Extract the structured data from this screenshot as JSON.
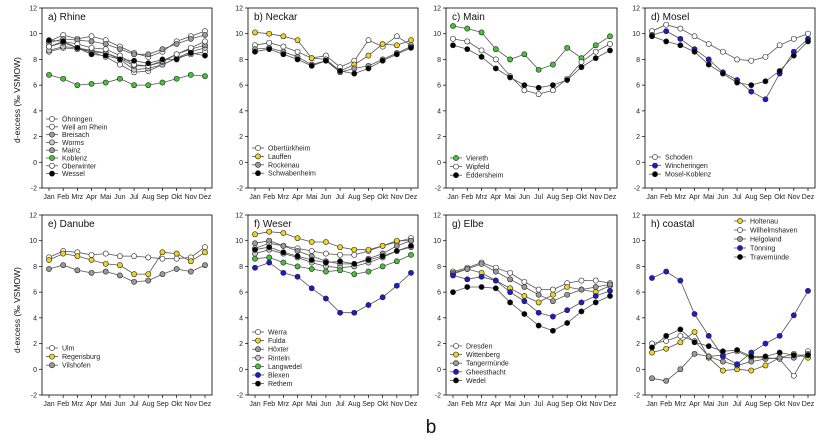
{
  "figure_label": "b",
  "y_axis_label": "d-excess (‰ VSMOW)",
  "colors": {
    "white": "#ffffff",
    "yellow": "#f2d21c",
    "grey": "#9a9a9a",
    "light_grey": "#c8c8c8",
    "green": "#45c236",
    "blue": "#1b1bd0",
    "black": "#000000"
  },
  "chart_data": [
    {
      "type": "line",
      "title": "a) Rhine",
      "categories": [
        "Jan",
        "Feb",
        "Mrz",
        "Apr",
        "Mai",
        "Jun",
        "Jul",
        "Aug",
        "Sep",
        "Okt",
        "Nov",
        "Dez"
      ],
      "ylim": [
        -2,
        12
      ],
      "yticks": [
        -2,
        0,
        2,
        4,
        6,
        8,
        10,
        12
      ],
      "series": [
        {
          "name": "Öhningen",
          "fill": "white",
          "values": [
            8.6,
            8.9,
            8.8,
            8.6,
            8.2,
            7.6,
            7.0,
            7.1,
            7.6,
            8.1,
            8.4,
            8.6
          ]
        },
        {
          "name": "Weil am Rhein",
          "fill": "white",
          "values": [
            9.4,
            9.9,
            9.6,
            9.8,
            9.5,
            9.0,
            8.5,
            8.2,
            8.6,
            9.4,
            9.8,
            10.2
          ]
        },
        {
          "name": "Breisach",
          "fill": "grey",
          "values": [
            9.3,
            9.6,
            9.5,
            9.4,
            9.2,
            8.8,
            8.4,
            8.4,
            8.8,
            9.2,
            9.6,
            9.9
          ]
        },
        {
          "name": "Worms",
          "fill": "light_grey",
          "values": [
            8.7,
            9.0,
            8.9,
            8.7,
            8.5,
            8.0,
            7.2,
            7.3,
            7.6,
            8.1,
            8.6,
            8.9
          ]
        },
        {
          "name": "Mainz",
          "fill": "grey",
          "values": [
            9.0,
            9.3,
            8.9,
            8.6,
            8.5,
            8.1,
            7.5,
            7.5,
            7.8,
            8.4,
            8.8,
            9.1
          ]
        },
        {
          "name": "Koblenz",
          "fill": "green",
          "values": [
            6.8,
            6.5,
            6.0,
            6.1,
            6.2,
            6.5,
            6.0,
            6.0,
            6.2,
            6.5,
            6.8,
            6.7
          ]
        },
        {
          "name": "Oberwinter",
          "fill": "white",
          "values": [
            9.0,
            9.4,
            9.2,
            8.9,
            8.8,
            8.3,
            7.6,
            7.5,
            7.9,
            8.4,
            8.9,
            9.4
          ]
        },
        {
          "name": "Wessel",
          "fill": "black",
          "values": [
            9.5,
            9.4,
            8.9,
            8.4,
            8.3,
            8.0,
            7.9,
            7.7,
            8.0,
            8.0,
            8.5,
            8.3
          ]
        }
      ]
    },
    {
      "type": "line",
      "title": "b) Neckar",
      "categories": [
        "Jan",
        "Feb",
        "Mrz",
        "Apr",
        "Mai",
        "Jun",
        "Jul",
        "Aug",
        "Sep",
        "Okt",
        "Nov",
        "Dez"
      ],
      "ylim": [
        -2,
        12
      ],
      "yticks": [
        -2,
        0,
        2,
        4,
        6,
        8,
        10,
        12
      ],
      "series": [
        {
          "name": "Obertürkheim",
          "fill": "white",
          "values": [
            9.1,
            9.3,
            9.0,
            8.6,
            8.1,
            8.3,
            7.4,
            7.9,
            9.5,
            9.0,
            9.8,
            9.1
          ]
        },
        {
          "name": "Lauffen",
          "fill": "yellow",
          "values": [
            10.1,
            10.0,
            9.8,
            9.5,
            8.1,
            8.0,
            7.1,
            7.6,
            8.3,
            9.2,
            9.1,
            9.5
          ]
        },
        {
          "name": "Rockenau",
          "fill": "grey",
          "values": [
            8.8,
            8.9,
            8.6,
            8.2,
            7.6,
            7.9,
            7.0,
            7.3,
            7.5,
            8.0,
            8.5,
            9.0
          ]
        },
        {
          "name": "Schwabenheim",
          "fill": "black",
          "values": [
            8.6,
            8.8,
            8.4,
            8.0,
            7.5,
            7.9,
            7.1,
            6.9,
            7.3,
            7.9,
            8.4,
            8.9
          ]
        }
      ]
    },
    {
      "type": "line",
      "title": "c) Main",
      "categories": [
        "Jan",
        "Feb",
        "Mrz",
        "Apr",
        "Mai",
        "Jun",
        "Jul",
        "Aug",
        "Sep",
        "Okt",
        "Nov",
        "Dez"
      ],
      "ylim": [
        -2,
        12
      ],
      "yticks": [
        -2,
        0,
        2,
        4,
        6,
        8,
        10,
        12
      ],
      "series": [
        {
          "name": "Viereth",
          "fill": "green",
          "values": [
            10.6,
            10.4,
            10.1,
            8.8,
            8.0,
            8.4,
            7.2,
            7.6,
            8.9,
            8.1,
            9.1,
            9.8
          ]
        },
        {
          "name": "Wipfeld",
          "fill": "white",
          "values": [
            9.6,
            9.4,
            8.7,
            8.0,
            6.7,
            5.6,
            5.3,
            5.6,
            6.5,
            7.8,
            8.6,
            9.2
          ]
        },
        {
          "name": "Eddersheim",
          "fill": "black",
          "values": [
            9.1,
            8.8,
            8.2,
            7.3,
            6.6,
            6.0,
            5.8,
            6.0,
            6.4,
            7.4,
            8.1,
            8.7
          ]
        }
      ]
    },
    {
      "type": "line",
      "title": "d) Mosel",
      "categories": [
        "Jan",
        "Feb",
        "Mrz",
        "Apr",
        "Mai",
        "Jun",
        "Jul",
        "Aug",
        "Sep",
        "Okt",
        "Nov",
        "Dez"
      ],
      "ylim": [
        -2,
        12
      ],
      "yticks": [
        -2,
        0,
        2,
        4,
        6,
        8,
        10,
        12
      ],
      "series": [
        {
          "name": "Schoden",
          "fill": "white",
          "values": [
            10.2,
            10.7,
            10.4,
            9.8,
            9.2,
            8.6,
            8.0,
            7.9,
            8.2,
            9.1,
            9.6,
            10.0
          ]
        },
        {
          "name": "Wincheringen",
          "fill": "blue",
          "values": [
            9.9,
            10.2,
            9.6,
            8.8,
            8.0,
            7.0,
            6.4,
            5.5,
            4.9,
            6.9,
            8.6,
            9.6
          ]
        },
        {
          "name": "Mosel-Koblenz",
          "fill": "black",
          "values": [
            9.8,
            9.4,
            9.1,
            8.6,
            7.6,
            6.9,
            6.2,
            6.0,
            6.3,
            7.1,
            8.3,
            9.4
          ]
        }
      ]
    },
    {
      "type": "line",
      "title": "e) Danube",
      "categories": [
        "Jan",
        "Feb",
        "Mrz",
        "Apr",
        "Mai",
        "Jun",
        "Jul",
        "Aug",
        "Sep",
        "Okt",
        "Nov",
        "Dez"
      ],
      "ylim": [
        -2,
        12
      ],
      "yticks": [
        -2,
        0,
        2,
        4,
        6,
        8,
        10,
        12
      ],
      "series": [
        {
          "name": "Ulm",
          "fill": "white",
          "values": [
            8.7,
            9.2,
            9.1,
            8.9,
            9.0,
            8.8,
            8.8,
            8.7,
            8.6,
            8.6,
            8.7,
            9.5
          ]
        },
        {
          "name": "Regensburg",
          "fill": "yellow",
          "values": [
            8.5,
            9.0,
            8.8,
            8.5,
            8.2,
            8.1,
            7.4,
            7.4,
            9.1,
            9.0,
            8.4,
            9.1
          ]
        },
        {
          "name": "Vilshofen",
          "fill": "grey",
          "values": [
            7.8,
            8.1,
            7.7,
            7.5,
            7.6,
            7.3,
            6.8,
            6.9,
            7.4,
            7.8,
            7.6,
            8.1
          ]
        }
      ]
    },
    {
      "type": "line",
      "title": "f) Weser",
      "categories": [
        "Jan",
        "Feb",
        "Mrz",
        "Apr",
        "Mai",
        "Jun",
        "Jul",
        "Aug",
        "Sep",
        "Okt",
        "Nov",
        "Dez"
      ],
      "ylim": [
        -2,
        12
      ],
      "yticks": [
        -2,
        0,
        2,
        4,
        6,
        8,
        10,
        12
      ],
      "series": [
        {
          "name": "Werra",
          "fill": "white",
          "values": [
            9.4,
            9.8,
            9.6,
            9.4,
            9.2,
            9.0,
            8.9,
            8.9,
            9.2,
            9.6,
            9.9,
            10.2
          ]
        },
        {
          "name": "Fulda",
          "fill": "yellow",
          "values": [
            10.5,
            10.7,
            10.6,
            10.2,
            9.9,
            9.9,
            9.5,
            9.3,
            9.3,
            9.6,
            10.0,
            10.0
          ]
        },
        {
          "name": "Höxter",
          "fill": "grey",
          "values": [
            9.8,
            10.0,
            9.6,
            9.2,
            8.8,
            8.4,
            8.2,
            8.2,
            8.6,
            9.0,
            9.6,
            10.0
          ]
        },
        {
          "name": "Rinteln",
          "fill": "light_grey",
          "values": [
            9.0,
            9.3,
            9.0,
            8.7,
            8.3,
            8.0,
            7.9,
            8.0,
            8.3,
            8.7,
            9.2,
            9.5
          ]
        },
        {
          "name": "Langwedel",
          "fill": "green",
          "values": [
            8.6,
            8.7,
            8.3,
            8.0,
            7.8,
            7.6,
            7.7,
            7.4,
            7.6,
            8.0,
            8.4,
            8.9
          ]
        },
        {
          "name": "Blexen",
          "fill": "blue",
          "values": [
            7.9,
            8.3,
            7.5,
            7.2,
            6.3,
            5.5,
            4.4,
            4.4,
            5.0,
            5.6,
            6.5,
            7.5
          ]
        },
        {
          "name": "Rethem",
          "fill": "black",
          "values": [
            9.3,
            9.5,
            9.1,
            8.8,
            8.5,
            8.3,
            8.4,
            8.2,
            8.5,
            8.8,
            9.2,
            9.6
          ]
        }
      ]
    },
    {
      "type": "line",
      "title": "g) Elbe",
      "categories": [
        "Jan",
        "Feb",
        "Mrz",
        "Apr",
        "Mai",
        "Jun",
        "Jul",
        "Aug",
        "Sep",
        "Okt",
        "Nov",
        "Dez"
      ],
      "ylim": [
        -2,
        12
      ],
      "yticks": [
        -2,
        0,
        2,
        4,
        6,
        8,
        10,
        12
      ],
      "series": [
        {
          "name": "Dresden",
          "fill": "white",
          "values": [
            7.6,
            7.9,
            8.3,
            7.9,
            7.5,
            6.8,
            6.2,
            6.2,
            6.7,
            6.9,
            6.9,
            6.7
          ]
        },
        {
          "name": "Wittenberg",
          "fill": "yellow",
          "values": [
            7.5,
            7.8,
            7.5,
            6.9,
            6.3,
            5.7,
            5.2,
            5.8,
            6.4,
            6.2,
            6.0,
            6.5
          ]
        },
        {
          "name": "Tangermünde",
          "fill": "grey",
          "values": [
            7.4,
            7.8,
            8.2,
            7.6,
            7.0,
            6.4,
            5.8,
            5.3,
            5.8,
            6.2,
            6.4,
            6.6
          ]
        },
        {
          "name": "Gheesthacht",
          "fill": "blue",
          "values": [
            7.3,
            7.0,
            7.2,
            6.9,
            6.0,
            5.3,
            4.4,
            4.1,
            4.6,
            5.2,
            5.7,
            6.1
          ]
        },
        {
          "name": "Wedel",
          "fill": "black",
          "values": [
            6.0,
            6.4,
            6.4,
            6.3,
            5.2,
            4.3,
            3.4,
            3.0,
            3.6,
            4.5,
            5.2,
            5.7
          ]
        }
      ]
    },
    {
      "type": "line",
      "title": "h) coastal",
      "categories": [
        "Jan",
        "Feb",
        "Mrz",
        "Apr",
        "Mai",
        "Jun",
        "Jul",
        "Aug",
        "Sep",
        "Okt",
        "Nov",
        "Dez"
      ],
      "ylim": [
        -2,
        12
      ],
      "yticks": [
        -2,
        0,
        2,
        4,
        6,
        8,
        10,
        12
      ],
      "series": [
        {
          "name": "Holtenau",
          "fill": "yellow",
          "values": [
            1.3,
            1.6,
            2.1,
            2.9,
            0.9,
            -0.1,
            0.0,
            -0.1,
            0.3,
            0.9,
            1.2,
            0.9
          ]
        },
        {
          "name": "Wilhelmshaven",
          "fill": "white",
          "values": [
            2.0,
            2.2,
            2.6,
            2.2,
            1.0,
            1.1,
            1.4,
            0.9,
            0.9,
            0.8,
            -0.5,
            1.4
          ]
        },
        {
          "name": "Helgoland",
          "fill": "grey",
          "values": [
            -0.7,
            -0.9,
            0.0,
            1.2,
            1.0,
            0.6,
            0.3,
            0.6,
            0.8,
            0.9,
            0.9,
            1.2
          ]
        },
        {
          "name": "Tönning",
          "fill": "blue",
          "values": [
            7.1,
            7.6,
            6.9,
            4.3,
            2.6,
            1.0,
            0.4,
            1.3,
            2.0,
            2.6,
            4.2,
            6.1
          ]
        },
        {
          "name": "Travemünde",
          "fill": "black",
          "values": [
            1.7,
            2.6,
            3.1,
            2.1,
            1.8,
            1.4,
            1.5,
            1.0,
            1.0,
            1.3,
            1.1,
            1.1
          ]
        }
      ]
    }
  ]
}
